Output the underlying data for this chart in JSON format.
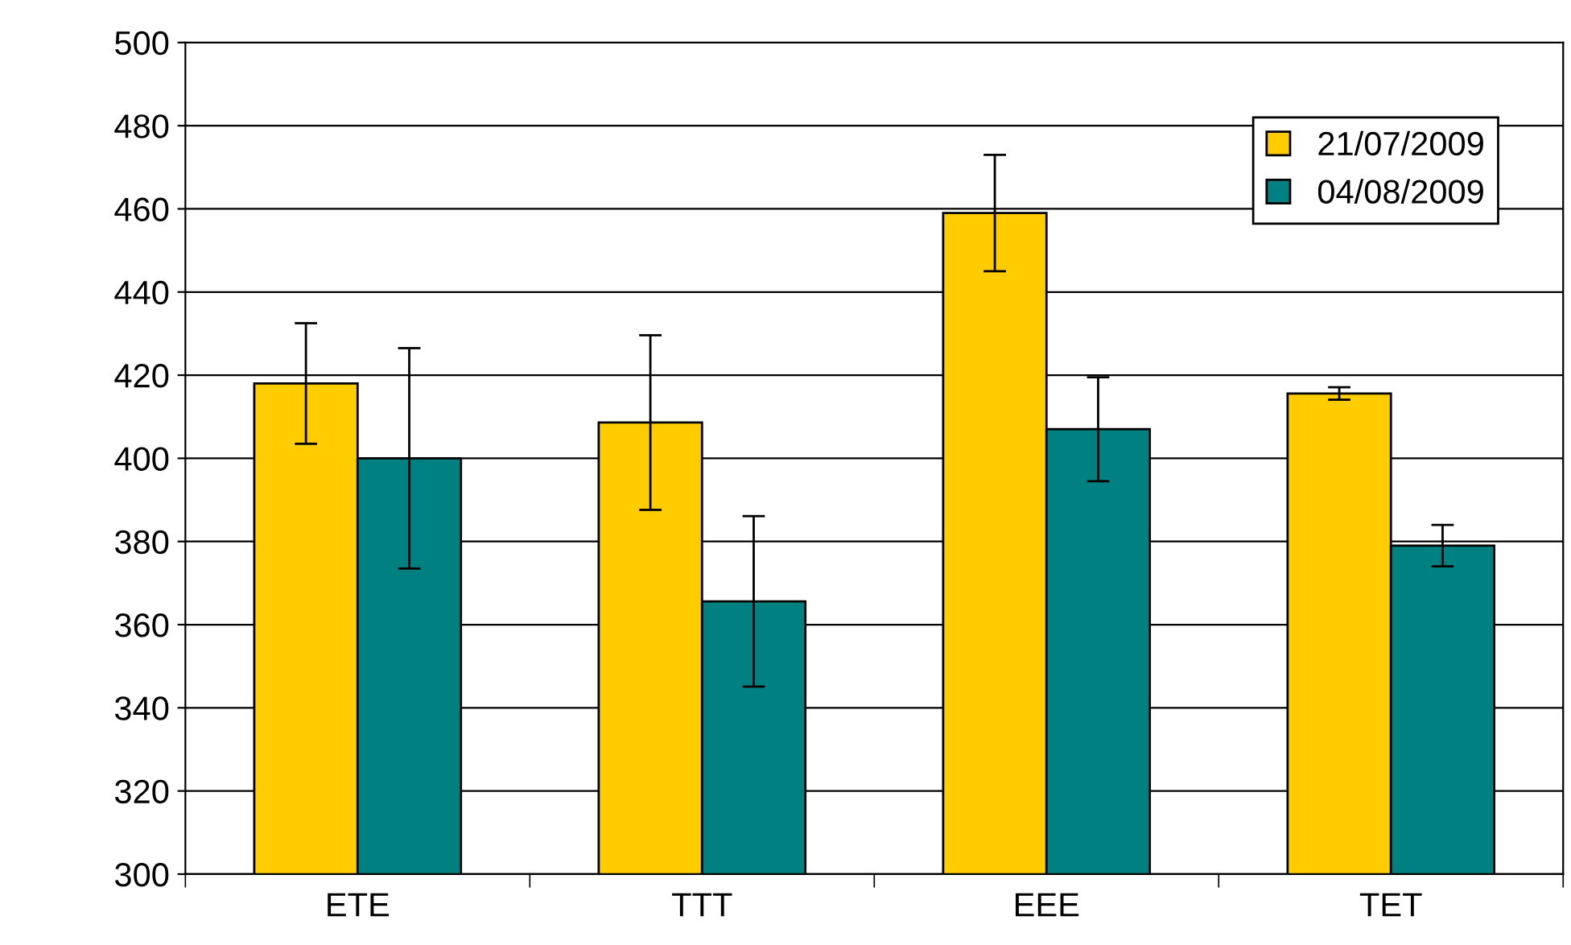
{
  "chart_data": {
    "type": "bar",
    "categories": [
      "ETE",
      "TTT",
      "EEE",
      "TET"
    ],
    "series": [
      {
        "name": "21/07/2009",
        "color": "#ffcc00",
        "values": [
          418,
          408.6,
          459,
          415.6
        ],
        "errors": [
          14.5,
          21,
          14,
          1.5
        ]
      },
      {
        "name": "04/08/2009",
        "color": "#008080",
        "values": [
          400,
          365.6,
          407,
          379
        ],
        "errors": [
          26.5,
          20.5,
          12.5,
          5
        ]
      }
    ],
    "ylim": [
      300,
      500
    ],
    "yticks": [
      300,
      320,
      340,
      360,
      380,
      400,
      420,
      440,
      460,
      480,
      500
    ],
    "grid": "y",
    "legend": "top right"
  }
}
